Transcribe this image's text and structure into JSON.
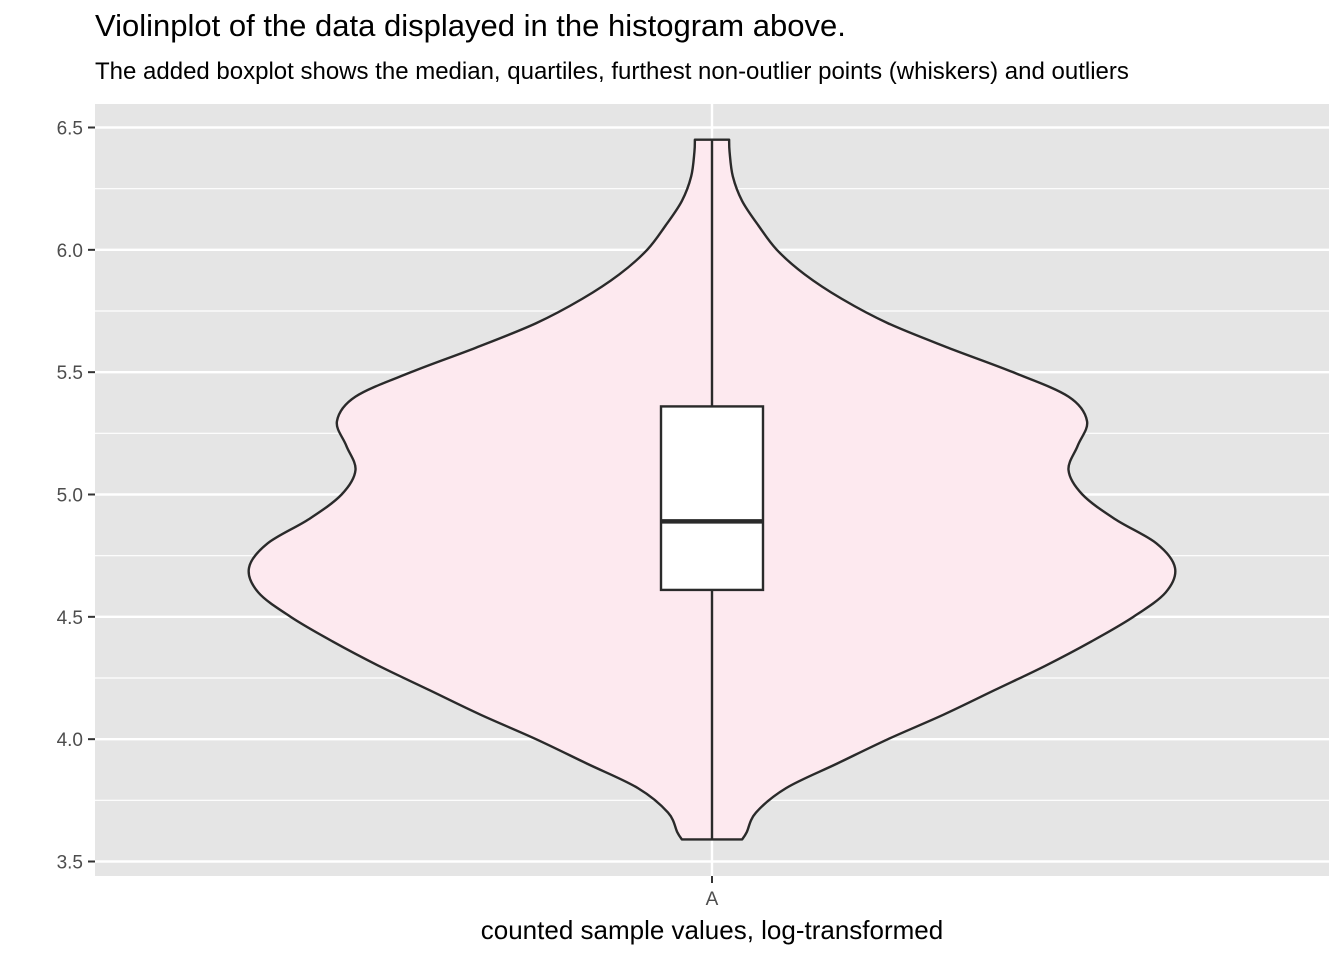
{
  "chart_data": {
    "type": "violin",
    "title": "Violinplot of the data displayed in the histogram above.",
    "subtitle": "The added boxplot shows the median, quartiles, furthest non-outlier points (whiskers) and outliers",
    "xlabel": "counted sample values, log-transformed",
    "ylabel": "",
    "categories": [
      "A"
    ],
    "ylim": [
      3.5,
      6.5
    ],
    "yticks": [
      "3.5",
      "4.0",
      "4.5",
      "5.0",
      "5.5",
      "6.0",
      "6.5"
    ],
    "grid": true,
    "fill_color": "#fde9ef",
    "panel_color": "#e5e5e5",
    "outline_color": "#2a2a2a",
    "violin": {
      "y_min": 3.59,
      "y_max": 6.45,
      "profile": [
        [
          3.59,
          0.065
        ],
        [
          3.62,
          0.075
        ],
        [
          3.7,
          0.095
        ],
        [
          3.8,
          0.16
        ],
        [
          3.9,
          0.27
        ],
        [
          4.0,
          0.38
        ],
        [
          4.1,
          0.5
        ],
        [
          4.2,
          0.61
        ],
        [
          4.3,
          0.72
        ],
        [
          4.4,
          0.82
        ],
        [
          4.5,
          0.91
        ],
        [
          4.6,
          0.98
        ],
        [
          4.7,
          1.0
        ],
        [
          4.8,
          0.96
        ],
        [
          4.9,
          0.87
        ],
        [
          5.0,
          0.8
        ],
        [
          5.1,
          0.77
        ],
        [
          5.2,
          0.79
        ],
        [
          5.3,
          0.81
        ],
        [
          5.4,
          0.77
        ],
        [
          5.5,
          0.65
        ],
        [
          5.6,
          0.51
        ],
        [
          5.7,
          0.38
        ],
        [
          5.8,
          0.28
        ],
        [
          5.9,
          0.2
        ],
        [
          6.0,
          0.14
        ],
        [
          6.1,
          0.1
        ],
        [
          6.2,
          0.065
        ],
        [
          6.3,
          0.045
        ],
        [
          6.4,
          0.038
        ],
        [
          6.45,
          0.037
        ]
      ]
    },
    "boxplot": {
      "whisker_low": 3.59,
      "q1": 4.61,
      "median": 4.89,
      "q3": 5.36,
      "whisker_high": 6.45
    }
  }
}
